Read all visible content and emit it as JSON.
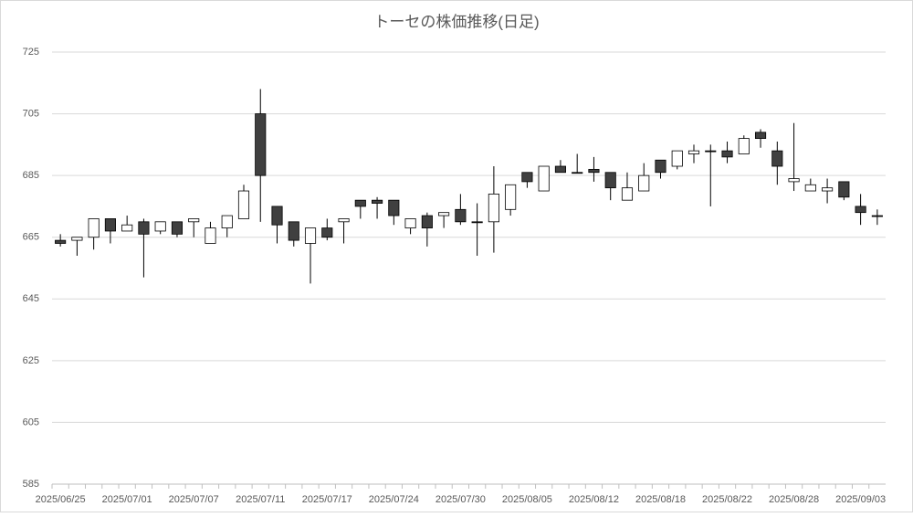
{
  "chart_data": {
    "type": "candlestick",
    "title": "トーセの株価推移(日足)",
    "categories": [
      "2025/06/25",
      null,
      null,
      null,
      "2025/07/01",
      null,
      null,
      null,
      "2025/07/07",
      null,
      null,
      null,
      "2025/07/11",
      null,
      null,
      null,
      "2025/07/17",
      null,
      null,
      null,
      "2025/07/24",
      null,
      null,
      null,
      "2025/07/30",
      null,
      null,
      null,
      "2025/08/05",
      null,
      null,
      null,
      "2025/08/12",
      null,
      null,
      null,
      "2025/08/18",
      null,
      null,
      null,
      "2025/08/22",
      null,
      null,
      null,
      "2025/08/28",
      null,
      null,
      null,
      "2025/09/03",
      null
    ],
    "open": [
      664,
      664,
      665,
      671,
      667,
      670,
      667,
      670,
      670,
      663,
      668,
      671,
      705,
      675,
      670,
      663,
      668,
      670,
      677,
      677,
      677,
      668,
      672,
      672,
      674,
      670,
      670,
      674,
      686,
      680,
      688,
      686,
      687,
      686,
      677,
      680,
      690,
      688,
      692,
      693,
      693,
      692,
      699,
      693,
      683,
      680,
      680,
      683,
      675,
      672
    ],
    "high": [
      666,
      665,
      671,
      671,
      672,
      671,
      670,
      670,
      671,
      670,
      672,
      682,
      713,
      675,
      670,
      668,
      671,
      671,
      677,
      678,
      677,
      671,
      673,
      673,
      679,
      676,
      688,
      682,
      686,
      688,
      690,
      692,
      691,
      686,
      686,
      689,
      690,
      693,
      695,
      695,
      696,
      698,
      700,
      696,
      702,
      684,
      684,
      683,
      679,
      674
    ],
    "low": [
      662,
      659,
      661,
      663,
      667,
      652,
      666,
      665,
      665,
      663,
      665,
      671,
      670,
      663,
      662,
      650,
      664,
      663,
      671,
      671,
      669,
      666,
      662,
      668,
      669,
      659,
      660,
      672,
      681,
      680,
      686,
      686,
      683,
      677,
      677,
      680,
      684,
      687,
      689,
      675,
      689,
      692,
      694,
      682,
      680,
      680,
      676,
      677,
      669,
      669
    ],
    "close": [
      663,
      665,
      671,
      667,
      669,
      666,
      670,
      666,
      671,
      668,
      672,
      680,
      685,
      669,
      664,
      668,
      665,
      671,
      675,
      676,
      672,
      671,
      668,
      673,
      670,
      670,
      679,
      682,
      683,
      688,
      686,
      686,
      686,
      681,
      681,
      685,
      686,
      693,
      693,
      693,
      691,
      697,
      697,
      688,
      684,
      682,
      681,
      678,
      673,
      672
    ],
    "up_color": "#ffffff",
    "down_color": "#404040",
    "ylim": [
      585,
      725
    ],
    "yticks": [
      585,
      605,
      625,
      645,
      665,
      685,
      705,
      725
    ],
    "grid": true
  }
}
